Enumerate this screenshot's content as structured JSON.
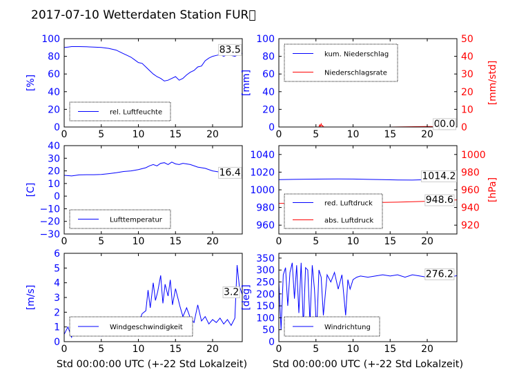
{
  "title": "2017-07-10 Wetterdaten Station FUR\u0000",
  "xlabel": "Std 00:00:00 UTC (+-22 Std Lokalzeit)",
  "colors": {
    "blue": "#0000ff",
    "red": "#ff0000",
    "axis": "#000000"
  },
  "chart_data": [
    {
      "id": "humidity",
      "type": "line",
      "ylabel": "[%]",
      "xlim": [
        0,
        24
      ],
      "ylim": [
        0,
        100
      ],
      "xticks": [
        0,
        5,
        10,
        15,
        20
      ],
      "yticks": [
        0,
        20,
        40,
        60,
        80,
        100
      ],
      "yticklabels": [
        "0",
        "20",
        "40",
        "60",
        "80",
        "100"
      ],
      "legend": {
        "placement": "lower-left",
        "entries": [
          {
            "label": "rel. Luftfeuchte",
            "color": "#0000ff"
          }
        ]
      },
      "annotations": [
        {
          "text": "83.5",
          "x": 20.8,
          "y": 88
        }
      ],
      "series": [
        {
          "name": "rel. Luftfeuchte",
          "color": "#0000ff",
          "x": [
            0,
            0.5,
            1,
            1.5,
            2,
            3,
            4,
            5,
            6,
            6.5,
            7,
            7.5,
            8,
            8.5,
            9,
            9.5,
            10,
            10.5,
            11,
            11.5,
            12,
            12.5,
            13,
            13.5,
            14,
            14.5,
            15,
            15.5,
            16,
            16.5,
            17,
            17.5,
            18,
            18.5,
            19,
            19.5,
            20,
            20.5,
            21,
            21.5,
            22,
            22.5,
            23,
            23.5,
            24
          ],
          "y": [
            90,
            90.5,
            91,
            91,
            91,
            90.8,
            90.5,
            90,
            89,
            88,
            87,
            85,
            83,
            81,
            79,
            76,
            73,
            72,
            68,
            64,
            60,
            57,
            55,
            52,
            53,
            55,
            57,
            53,
            55,
            59,
            62,
            64,
            68,
            69,
            75,
            78,
            80,
            81,
            82,
            80,
            82,
            81,
            80,
            82,
            83.5
          ]
        }
      ]
    },
    {
      "id": "precip",
      "type": "line",
      "ylabel": "[mm]",
      "ylabel2": "[mm/std]",
      "xlim": [
        0,
        24
      ],
      "ylim": [
        0,
        100
      ],
      "ylim2": [
        0,
        50
      ],
      "xticks": [
        0,
        5,
        10,
        15,
        20
      ],
      "yticks": [
        0,
        20,
        40,
        60,
        80,
        100
      ],
      "yticklabels": [
        "0",
        "20",
        "40",
        "60",
        "80",
        "100"
      ],
      "yticks2": [
        0,
        10,
        20,
        30,
        40,
        50
      ],
      "yticklabels2": [
        "0",
        "10",
        "20",
        "30",
        "40",
        "50"
      ],
      "legend": {
        "placement": "upper-left",
        "entries": [
          {
            "label": "kum. Niederschlag",
            "color": "#0000ff"
          },
          {
            "label": "Niederschlagsrate",
            "color": "#ff0000"
          }
        ]
      },
      "annotations": [
        {
          "text": "0.0",
          "x": 20.8,
          "y": 4
        },
        {
          "text": "0.0",
          "x": 21.6,
          "y": 4
        }
      ],
      "series": [
        {
          "name": "kum. Niederschlag",
          "color": "#0000ff",
          "axis": "left",
          "x": [
            0,
            24
          ],
          "y": [
            0,
            0
          ]
        },
        {
          "name": "Niederschlagsrate",
          "color": "#ff0000",
          "axis": "right",
          "x": [
            0,
            5.4,
            5.5,
            5.6,
            5.7,
            5.8,
            5.9,
            6.0,
            6.1,
            10,
            15,
            20,
            24
          ],
          "y": [
            0,
            0,
            1.2,
            0.3,
            1.8,
            0.5,
            0.8,
            0.2,
            0,
            0,
            0,
            0.3,
            0
          ]
        }
      ]
    },
    {
      "id": "temperature",
      "type": "line",
      "ylabel": "[C]",
      "xlim": [
        0,
        24
      ],
      "ylim": [
        -30,
        40
      ],
      "xticks": [
        0,
        5,
        10,
        15,
        20
      ],
      "yticks": [
        -30,
        -20,
        -10,
        0,
        10,
        20,
        30,
        40
      ],
      "yticklabels": [
        "−30",
        "−20",
        "−10",
        "0",
        "10",
        "20",
        "30",
        "40"
      ],
      "legend": {
        "placement": "lower-left",
        "entries": [
          {
            "label": "Lufttemperatur",
            "color": "#0000ff"
          }
        ]
      },
      "annotations": [
        {
          "text": "16.4",
          "x": 20.8,
          "y": 19
        }
      ],
      "series": [
        {
          "name": "Lufttemperatur",
          "color": "#0000ff",
          "x": [
            0,
            1,
            2,
            3,
            4,
            5,
            6,
            7,
            8,
            9,
            10,
            11,
            11.5,
            12,
            12.5,
            13,
            13.5,
            14,
            14.5,
            15,
            15.5,
            16,
            16.5,
            17,
            18,
            19,
            20,
            21,
            22,
            23,
            24
          ],
          "y": [
            16.5,
            16,
            16.8,
            17,
            17,
            17.2,
            17.8,
            18.5,
            19.5,
            20,
            21,
            22.5,
            24,
            25,
            24,
            26,
            26.5,
            25,
            27,
            25.5,
            25,
            26,
            25.5,
            25,
            23,
            22,
            20,
            19,
            18.5,
            17.5,
            16.4
          ]
        }
      ]
    },
    {
      "id": "pressure",
      "type": "line",
      "ylabel2": "[hPa]",
      "xlim": [
        0,
        24
      ],
      "ylim": [
        950,
        1050
      ],
      "ylim2": [
        910,
        1010
      ],
      "xticks": [
        0,
        5,
        10,
        15,
        20
      ],
      "yticks": [
        960,
        980,
        1000,
        1020,
        1040
      ],
      "yticklabels": [
        "960",
        "980",
        "1000",
        "1020",
        "1040"
      ],
      "yticks2": [
        920,
        940,
        960,
        980,
        1000
      ],
      "yticklabels2": [
        "920",
        "940",
        "960",
        "980",
        "1000"
      ],
      "legend": {
        "placement": "lower-left",
        "entries": [
          {
            "label": "red. Luftdruck",
            "color": "#0000ff"
          },
          {
            "label": "abs. Luftdruck",
            "color": "#ff0000"
          }
        ]
      },
      "annotations": [
        {
          "text": "1014.2",
          "x": 19.2,
          "y": 1016
        },
        {
          "text": "948.6",
          "x": 19.7,
          "y": 989
        }
      ],
      "series": [
        {
          "name": "red. Luftdruck",
          "color": "#0000ff",
          "axis": "left",
          "x": [
            0,
            2,
            4,
            6,
            8,
            10,
            12,
            14,
            16,
            18,
            20,
            22,
            24
          ],
          "y": [
            1011.5,
            1011.8,
            1012,
            1012.2,
            1012.3,
            1012.2,
            1011.8,
            1011.5,
            1011.2,
            1011,
            1011.5,
            1013,
            1014.2
          ]
        },
        {
          "name": "abs. Luftdruck",
          "color": "#ff0000",
          "axis": "right",
          "x": [
            0,
            2,
            4,
            6,
            8,
            10,
            12,
            14,
            16,
            18,
            20,
            22,
            24
          ],
          "y": [
            944.5,
            945,
            945.3,
            945.8,
            946.2,
            946.5,
            946.2,
            945.8,
            946,
            946.5,
            947,
            947.8,
            948.6
          ]
        }
      ]
    },
    {
      "id": "windspeed",
      "type": "line",
      "ylabel": "[m/s]",
      "xlim": [
        0,
        24
      ],
      "ylim": [
        0,
        6
      ],
      "xticks": [
        0,
        5,
        10,
        15,
        20
      ],
      "yticks": [
        0,
        1,
        2,
        3,
        4,
        5,
        6
      ],
      "yticklabels": [
        "0",
        "1",
        "2",
        "3",
        "4",
        "5",
        "6"
      ],
      "legend": {
        "placement": "lower-left",
        "entries": [
          {
            "label": "Windgeschwindigkeit",
            "color": "#0000ff"
          }
        ]
      },
      "annotations": [
        {
          "text": "3.2",
          "x": 21.4,
          "y": 3.4
        }
      ],
      "series": [
        {
          "name": "Windgeschwindigkeit",
          "color": "#0000ff",
          "x": [
            0,
            0.5,
            1,
            1.5,
            2,
            2.5,
            3,
            3.5,
            4,
            4.5,
            5,
            5.5,
            6,
            6.5,
            7,
            7.5,
            8,
            8.5,
            9,
            9.5,
            10,
            10.5,
            11,
            11.3,
            11.6,
            12,
            12.3,
            12.6,
            13,
            13.3,
            13.6,
            14,
            14.3,
            14.6,
            15,
            15.3,
            15.6,
            16,
            16.5,
            17,
            17.5,
            18,
            18.5,
            19,
            19.5,
            20,
            20.5,
            21,
            21.5,
            22,
            22.5,
            23,
            23.3,
            23.6,
            24
          ],
          "y": [
            0.5,
            1.0,
            0.3,
            1.2,
            0.6,
            1.4,
            0.8,
            1.5,
            0.5,
            1.3,
            0.4,
            1.2,
            0.7,
            1.4,
            0.9,
            1.3,
            1.0,
            1.6,
            1.1,
            1.5,
            1.2,
            1.9,
            2.1,
            3.5,
            2.3,
            4.0,
            2.8,
            3.4,
            4.5,
            2.6,
            3.9,
            3.1,
            4.2,
            2.5,
            3.6,
            3.0,
            2.4,
            1.7,
            2.3,
            1.6,
            1.3,
            2.5,
            1.4,
            1.7,
            1.2,
            1.5,
            1.3,
            1.6,
            1.2,
            1.5,
            1.1,
            1.6,
            5.2,
            3.8,
            3.2
          ]
        }
      ]
    },
    {
      "id": "winddir",
      "type": "line",
      "ylabel": "[deg]",
      "xlim": [
        0,
        24
      ],
      "ylim": [
        0,
        370
      ],
      "xticks": [
        0,
        5,
        10,
        15,
        20
      ],
      "yticks": [
        0,
        50,
        100,
        150,
        200,
        250,
        300,
        350
      ],
      "yticklabels": [
        "0",
        "50",
        "100",
        "150",
        "200",
        "250",
        "300",
        "350"
      ],
      "legend": {
        "placement": "lower-left",
        "entries": [
          {
            "label": "Windrichtung",
            "color": "#0000ff"
          }
        ]
      },
      "annotations": [
        {
          "text": "276.2",
          "x": 19.7,
          "y": 285
        }
      ],
      "series": [
        {
          "name": "Windrichtung",
          "color": "#0000ff",
          "x": [
            0,
            0.3,
            0.6,
            0.9,
            1.2,
            1.5,
            1.8,
            2.1,
            2.4,
            2.7,
            3.0,
            3.3,
            3.6,
            3.9,
            4.2,
            4.5,
            4.8,
            5.1,
            5.4,
            5.7,
            6.0,
            6.5,
            7.0,
            7.5,
            8.0,
            8.5,
            9.0,
            9.3,
            9.6,
            10,
            10.5,
            11,
            12,
            13,
            14,
            15,
            16,
            17,
            18,
            19,
            20,
            20.5,
            21,
            22,
            23,
            24
          ],
          "y": [
            250,
            50,
            280,
            310,
            150,
            290,
            330,
            180,
            320,
            120,
            330,
            60,
            310,
            300,
            80,
            320,
            220,
            40,
            300,
            270,
            110,
            280,
            250,
            290,
            220,
            280,
            110,
            260,
            220,
            260,
            270,
            275,
            270,
            275,
            280,
            275,
            280,
            270,
            280,
            275,
            270,
            260,
            275,
            280,
            270,
            276.2
          ]
        }
      ]
    }
  ]
}
